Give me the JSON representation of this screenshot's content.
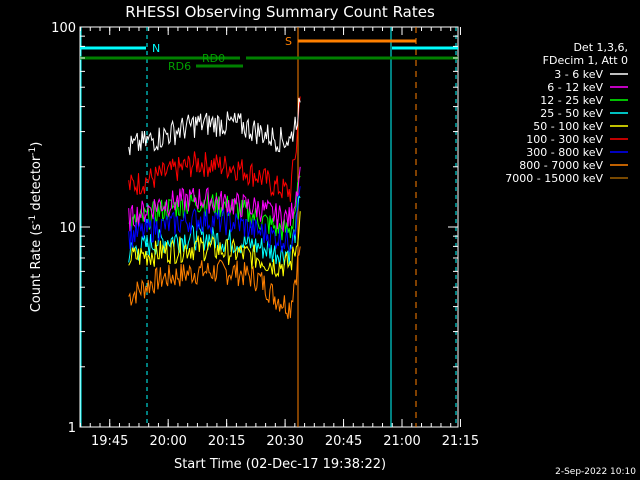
{
  "chart_data": {
    "type": "line",
    "title": "RHESSI Observing Summary Count Rates",
    "xlabel": "Start Time (02-Dec-17 19:38:22)",
    "ylabel_main": "Count Rate (s",
    "ylabel_sup1": "-1",
    "ylabel_mid": " detector",
    "ylabel_sup2": "-1",
    "ylabel_end": ")",
    "ylabel": "Count Rate (s^-1 detector^-1)",
    "yscale": "log",
    "ylim": [
      1,
      100
    ],
    "xlim_minutes": [
      0,
      97
    ],
    "x_ticks": [
      {
        "m": 7.63,
        "label": "19:45"
      },
      {
        "m": 22.63,
        "label": "20:00"
      },
      {
        "m": 37.63,
        "label": "20:15"
      },
      {
        "m": 52.63,
        "label": "20:30"
      },
      {
        "m": 67.63,
        "label": "20:45"
      },
      {
        "m": 82.63,
        "label": "21:00"
      },
      {
        "m": 97.63,
        "label": "21:15"
      }
    ],
    "y_ticks": [
      {
        "v": 1,
        "label": "1"
      },
      {
        "v": 10,
        "label": "10"
      },
      {
        "v": 100,
        "label": "100"
      }
    ],
    "legend_header": [
      "Det 1,3,6,",
      "FDecim 1, Att 0"
    ],
    "series": [
      {
        "name": "3 - 6 keV",
        "color": "#ffffff",
        "x": [
          12.5,
          20,
          30,
          40,
          46,
          50,
          54,
          55.5,
          56.5
        ],
        "y": [
          25,
          28,
          33,
          33,
          30,
          28,
          27,
          35,
          42
        ]
      },
      {
        "name": "6 - 12 keV",
        "color": "#ff00ff",
        "x": [
          12.5,
          20,
          30,
          40,
          46,
          50,
          54,
          55.5,
          56.5
        ],
        "y": [
          11,
          13,
          14,
          13,
          12.5,
          11.5,
          11,
          15,
          20
        ]
      },
      {
        "name": "12 - 25 keV",
        "color": "#00ff00",
        "x": [
          12.5,
          20,
          30,
          40,
          46,
          50,
          54,
          55.5,
          56.5
        ],
        "y": [
          10,
          12,
          13.5,
          12.5,
          11,
          10,
          9.5,
          13,
          18
        ]
      },
      {
        "name": "25 - 50 keV",
        "color": "#00ffff",
        "x": [
          12.5,
          20,
          30,
          40,
          46,
          50,
          54,
          55.5,
          56.5
        ],
        "y": [
          7.5,
          8.5,
          9,
          8.5,
          8,
          7.5,
          7.5,
          10,
          14
        ]
      },
      {
        "name": "50 - 100 keV",
        "color": "#ffff00",
        "x": [
          12.5,
          20,
          30,
          40,
          46,
          50,
          54,
          55.5,
          56.5
        ],
        "y": [
          7,
          7.5,
          8,
          7.5,
          7,
          6.5,
          6.5,
          8,
          12
        ]
      },
      {
        "name": "100 - 300 keV",
        "color": "#ff0000",
        "x": [
          12.5,
          20,
          30,
          40,
          46,
          50,
          54,
          55.5,
          56.5
        ],
        "y": [
          16,
          18,
          21,
          20,
          18,
          16,
          15,
          25,
          45
        ]
      },
      {
        "name": "300 - 800 keV",
        "color": "#0000ff",
        "x": [
          12.5,
          20,
          30,
          40,
          46,
          50,
          54,
          55.5,
          56.5
        ],
        "y": [
          9,
          10,
          11,
          10.5,
          9.5,
          9,
          8.5,
          11,
          16
        ]
      },
      {
        "name": "800 - 7000 keV",
        "color": "#ff8000",
        "x": [
          12.5,
          20,
          30,
          40,
          46,
          50,
          54,
          55.5,
          56.5
        ],
        "y": [
          4.5,
          5.5,
          6,
          6,
          5.5,
          4.5,
          4,
          6,
          8
        ]
      },
      {
        "name": "7000 - 15000 keV",
        "color": "#a06000",
        "x": [],
        "y": []
      }
    ],
    "flags": {
      "saa_label": "S",
      "night_label": "N",
      "rd0_label": "RD0",
      "rd6_label": "RD6"
    }
  },
  "footer_timestamp": "2-Sep-2022 10:10"
}
